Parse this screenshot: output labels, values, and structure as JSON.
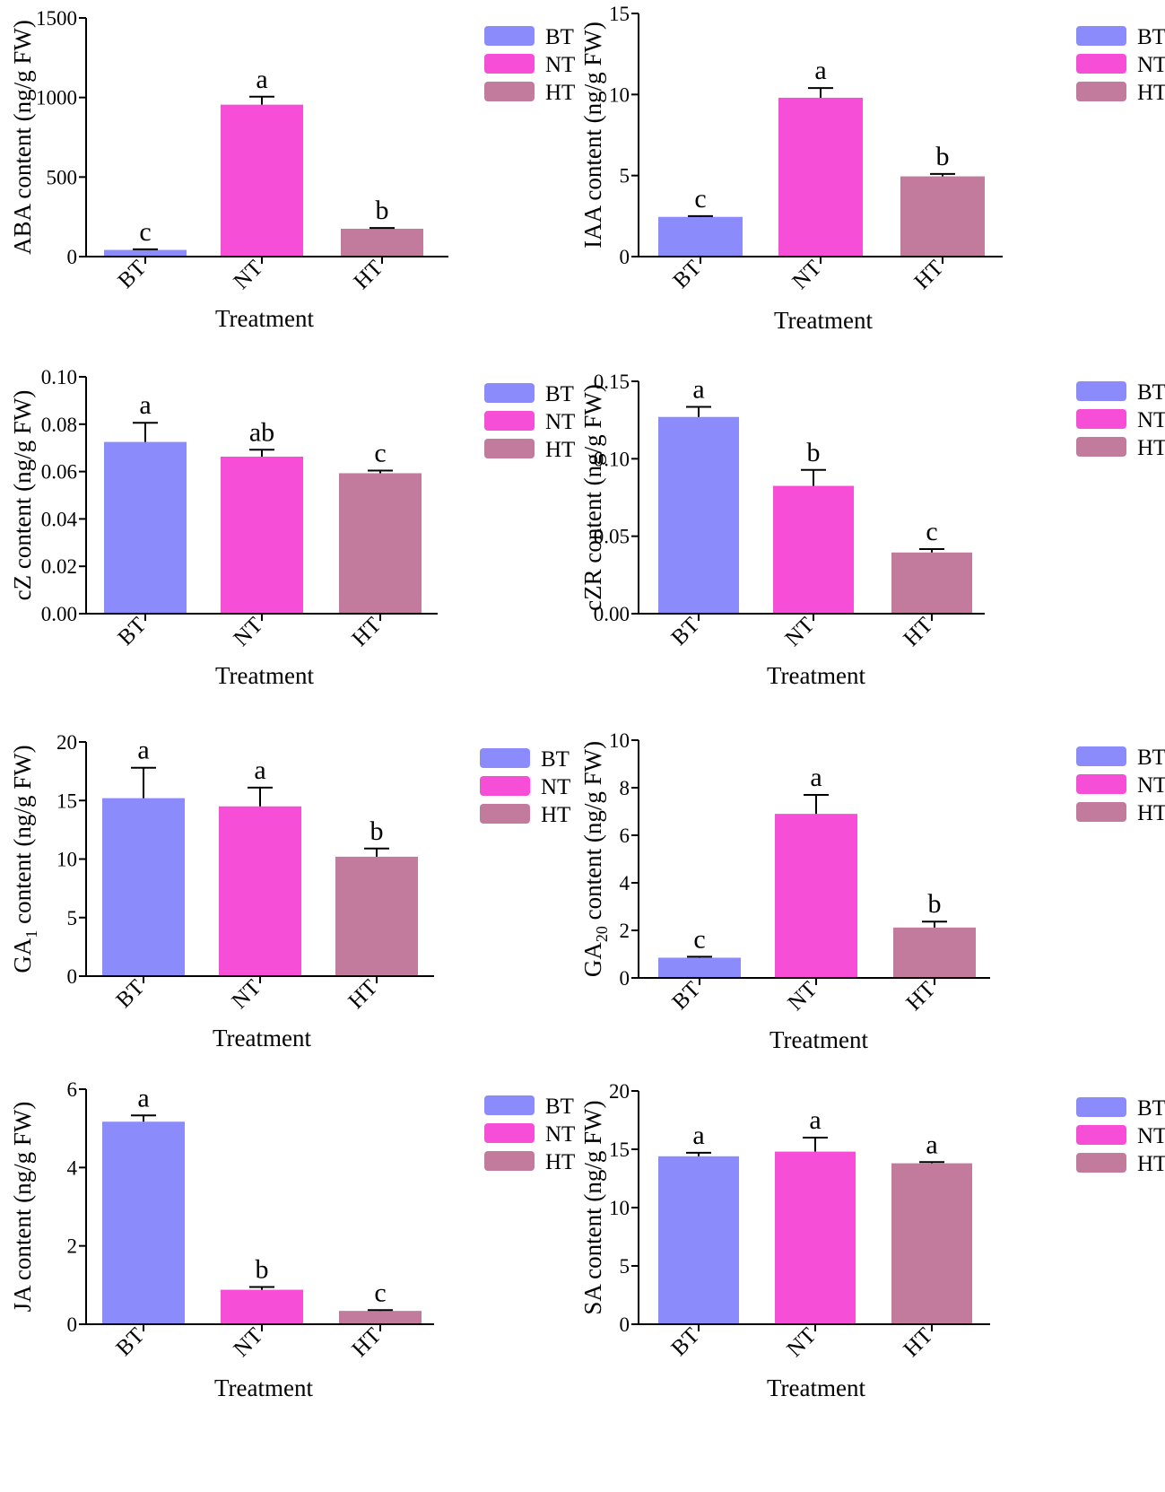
{
  "treatment_label": "Treatment",
  "legend": [
    {
      "name": "BT",
      "color": "#8B8BFB"
    },
    {
      "name": "NT",
      "color": "#F74ED8"
    },
    {
      "name": "HT",
      "color": "#C27B9C"
    }
  ],
  "chart_data": [
    {
      "type": "bar",
      "panel": "ABA",
      "categories": [
        "BT",
        "NT",
        "HT"
      ],
      "values": [
        42,
        955,
        175
      ],
      "errors": [
        4,
        50,
        5
      ],
      "letters": [
        "c",
        "a",
        "b"
      ],
      "ylabel": "ABA content (ng/g FW)",
      "ylabel_sub": null,
      "ylabel_rest": null,
      "xlabel": "Treatment",
      "ylim": [
        0,
        1500
      ],
      "yticks": [
        0,
        500,
        1000,
        1500
      ],
      "ytick_labels": [
        "0",
        "500",
        "1000",
        "1500"
      ]
    },
    {
      "type": "bar",
      "panel": "IAA",
      "categories": [
        "BT",
        "NT",
        "HT"
      ],
      "values": [
        2.45,
        9.8,
        4.95
      ],
      "errors": [
        0.05,
        0.6,
        0.15
      ],
      "letters": [
        "c",
        "a",
        "b"
      ],
      "ylabel": "IAA content (ng/g FW)",
      "ylabel_sub": null,
      "ylabel_rest": null,
      "xlabel": "Treatment",
      "ylim": [
        0,
        15
      ],
      "yticks": [
        0,
        5,
        10,
        15
      ],
      "ytick_labels": [
        "0",
        "5",
        "10",
        "15"
      ]
    },
    {
      "type": "bar",
      "panel": "cZ",
      "categories": [
        "BT",
        "NT",
        "HT"
      ],
      "values": [
        0.0725,
        0.0663,
        0.0593
      ],
      "errors": [
        0.0081,
        0.0029,
        0.0011
      ],
      "letters": [
        "a",
        "ab",
        "c"
      ],
      "ylabel": "cZ content (ng/g FW)",
      "ylabel_sub": null,
      "ylabel_rest": null,
      "xlabel": "Treatment",
      "ylim": [
        0,
        0.1
      ],
      "yticks": [
        0,
        0.02,
        0.04,
        0.06,
        0.08,
        0.1
      ],
      "ytick_labels": [
        "0.00",
        "0.02",
        "0.04",
        "0.06",
        "0.08",
        "0.10"
      ]
    },
    {
      "type": "bar",
      "panel": "cZR",
      "categories": [
        "BT",
        "NT",
        "HT"
      ],
      "values": [
        0.127,
        0.0825,
        0.0395
      ],
      "errors": [
        0.0065,
        0.0103,
        0.0022
      ],
      "letters": [
        "a",
        "b",
        "c"
      ],
      "ylabel": "cZR content (ng/g FW)",
      "ylabel_sub": null,
      "ylabel_rest": null,
      "xlabel": "Treatment",
      "ylim": [
        0,
        0.15
      ],
      "yticks": [
        0,
        0.05,
        0.1,
        0.15
      ],
      "ytick_labels": [
        "0.00",
        "0.05",
        "0.10",
        "0.15"
      ]
    },
    {
      "type": "bar",
      "panel": "GA1",
      "categories": [
        "BT",
        "NT",
        "HT"
      ],
      "values": [
        15.2,
        14.5,
        10.2
      ],
      "errors": [
        2.6,
        1.6,
        0.7
      ],
      "letters": [
        "a",
        "a",
        "b"
      ],
      "ylabel": "GA",
      "ylabel_sub": "1",
      "ylabel_rest": " content (ng/g FW)",
      "xlabel": "Treatment",
      "ylim": [
        0,
        20
      ],
      "yticks": [
        0,
        5,
        10,
        15,
        20
      ],
      "ytick_labels": [
        "0",
        "5",
        "10",
        "15",
        "20"
      ]
    },
    {
      "type": "bar",
      "panel": "GA20",
      "categories": [
        "BT",
        "NT",
        "HT"
      ],
      "values": [
        0.85,
        6.9,
        2.12
      ],
      "errors": [
        0.04,
        0.8,
        0.25
      ],
      "letters": [
        "c",
        "a",
        "b"
      ],
      "ylabel": "GA",
      "ylabel_sub": "20",
      "ylabel_rest": " content (ng/g FW)",
      "xlabel": "Treatment",
      "ylim": [
        0,
        10
      ],
      "yticks": [
        0,
        2,
        4,
        6,
        8,
        10
      ],
      "ytick_labels": [
        "0",
        "2",
        "4",
        "6",
        "8",
        "10"
      ]
    },
    {
      "type": "bar",
      "panel": "JA",
      "categories": [
        "BT",
        "NT",
        "HT"
      ],
      "values": [
        5.17,
        0.88,
        0.34
      ],
      "errors": [
        0.16,
        0.07,
        0.02
      ],
      "letters": [
        "a",
        "b",
        "c"
      ],
      "ylabel": "JA content (ng/g FW)",
      "ylabel_sub": null,
      "ylabel_rest": null,
      "xlabel": "Treatment",
      "ylim": [
        0,
        6
      ],
      "yticks": [
        0,
        2,
        4,
        6
      ],
      "ytick_labels": [
        "0",
        "2",
        "4",
        "6"
      ]
    },
    {
      "type": "bar",
      "panel": "SA",
      "categories": [
        "BT",
        "NT",
        "HT"
      ],
      "values": [
        14.4,
        14.8,
        13.8
      ],
      "errors": [
        0.3,
        1.2,
        0.1
      ],
      "letters": [
        "a",
        "a",
        "a"
      ],
      "ylabel": "SA content (ng/g FW)",
      "ylabel_sub": null,
      "ylabel_rest": null,
      "xlabel": "Treatment",
      "ylim": [
        0,
        20
      ],
      "yticks": [
        0,
        5,
        10,
        15,
        20
      ],
      "ytick_labels": [
        "0",
        "5",
        "10",
        "15",
        "20"
      ]
    }
  ]
}
